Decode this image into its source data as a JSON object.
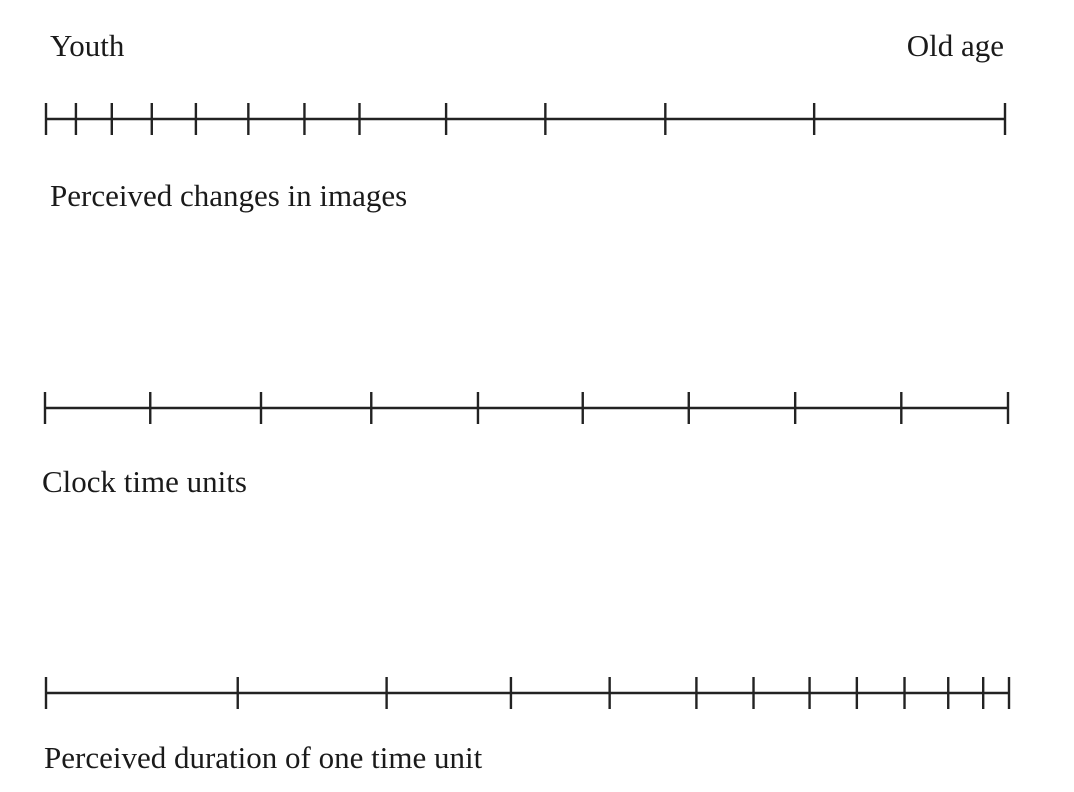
{
  "ends": {
    "start": "Youth",
    "end": "Old age"
  },
  "scales": [
    {
      "label": "Perceived changes in images",
      "tick_positions": [
        0,
        0.0312,
        0.0686,
        0.1103,
        0.1563,
        0.211,
        0.2695,
        0.3269,
        0.4172,
        0.5207,
        0.6458,
        0.801,
        1
      ]
    },
    {
      "label": "Clock time units",
      "tick_positions": [
        0,
        0.1093,
        0.2243,
        0.3388,
        0.4496,
        0.5584,
        0.6685,
        0.779,
        0.8892,
        1
      ]
    },
    {
      "label": "Perceived duration of one time unit",
      "tick_positions": [
        0,
        0.1991,
        0.3537,
        0.4828,
        0.5853,
        0.6754,
        0.7347,
        0.7929,
        0.842,
        0.8915,
        0.9369,
        0.9732,
        1
      ]
    }
  ],
  "colors": {
    "line": "#222222",
    "text": "#1a1a1a",
    "background": "#ffffff"
  }
}
